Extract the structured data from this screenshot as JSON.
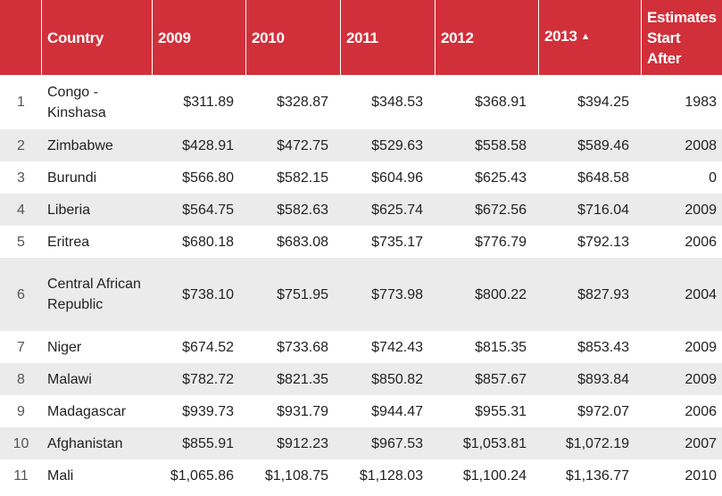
{
  "header": {
    "index": "",
    "country": "Country",
    "y2009": "2009",
    "y2010": "2010",
    "y2011": "2011",
    "y2012": "2012",
    "y2013": "2013",
    "sort_indicator": "▲",
    "estimates_line1": "Estimates",
    "estimates_line2": "Start",
    "estimates_line3": "After"
  },
  "rows": [
    {
      "idx": "1",
      "country": "Congo - Kinshasa",
      "v2009": "$311.89",
      "v2010": "$328.87",
      "v2011": "$348.53",
      "v2012": "$368.91",
      "v2013": "$394.25",
      "est": "1983"
    },
    {
      "idx": "2",
      "country": "Zimbabwe",
      "v2009": "$428.91",
      "v2010": "$472.75",
      "v2011": "$529.63",
      "v2012": "$558.58",
      "v2013": "$589.46",
      "est": "2008"
    },
    {
      "idx": "3",
      "country": "Burundi",
      "v2009": "$566.80",
      "v2010": "$582.15",
      "v2011": "$604.96",
      "v2012": "$625.43",
      "v2013": "$648.58",
      "est": "0"
    },
    {
      "idx": "4",
      "country": "Liberia",
      "v2009": "$564.75",
      "v2010": "$582.63",
      "v2011": "$625.74",
      "v2012": "$672.56",
      "v2013": "$716.04",
      "est": "2009"
    },
    {
      "idx": "5",
      "country": "Eritrea",
      "v2009": "$680.18",
      "v2010": "$683.08",
      "v2011": "$735.17",
      "v2012": "$776.79",
      "v2013": "$792.13",
      "est": "2006"
    },
    {
      "idx": "6",
      "country": "Central African Republic",
      "v2009": "$738.10",
      "v2010": "$751.95",
      "v2011": "$773.98",
      "v2012": "$800.22",
      "v2013": "$827.93",
      "est": "2004"
    },
    {
      "idx": "7",
      "country": "Niger",
      "v2009": "$674.52",
      "v2010": "$733.68",
      "v2011": "$742.43",
      "v2012": "$815.35",
      "v2013": "$853.43",
      "est": "2009"
    },
    {
      "idx": "8",
      "country": "Malawi",
      "v2009": "$782.72",
      "v2010": "$821.35",
      "v2011": "$850.82",
      "v2012": "$857.67",
      "v2013": "$893.84",
      "est": "2009"
    },
    {
      "idx": "9",
      "country": "Madagascar",
      "v2009": "$939.73",
      "v2010": "$931.79",
      "v2011": "$944.47",
      "v2012": "$955.31",
      "v2013": "$972.07",
      "est": "2006"
    },
    {
      "idx": "10",
      "country": "Afghanistan",
      "v2009": "$855.91",
      "v2010": "$912.23",
      "v2011": "$967.53",
      "v2012": "$1,053.81",
      "v2013": "$1,072.19",
      "est": "2007"
    },
    {
      "idx": "11",
      "country": "Mali",
      "v2009": "$1,065.86",
      "v2010": "$1,108.75",
      "v2011": "$1,128.03",
      "v2012": "$1,100.24",
      "v2013": "$1,136.77",
      "est": "2010"
    }
  ],
  "colors": {
    "header_bg": "#d1303a",
    "header_text": "#ffffff",
    "stripe": "#ebebeb"
  }
}
